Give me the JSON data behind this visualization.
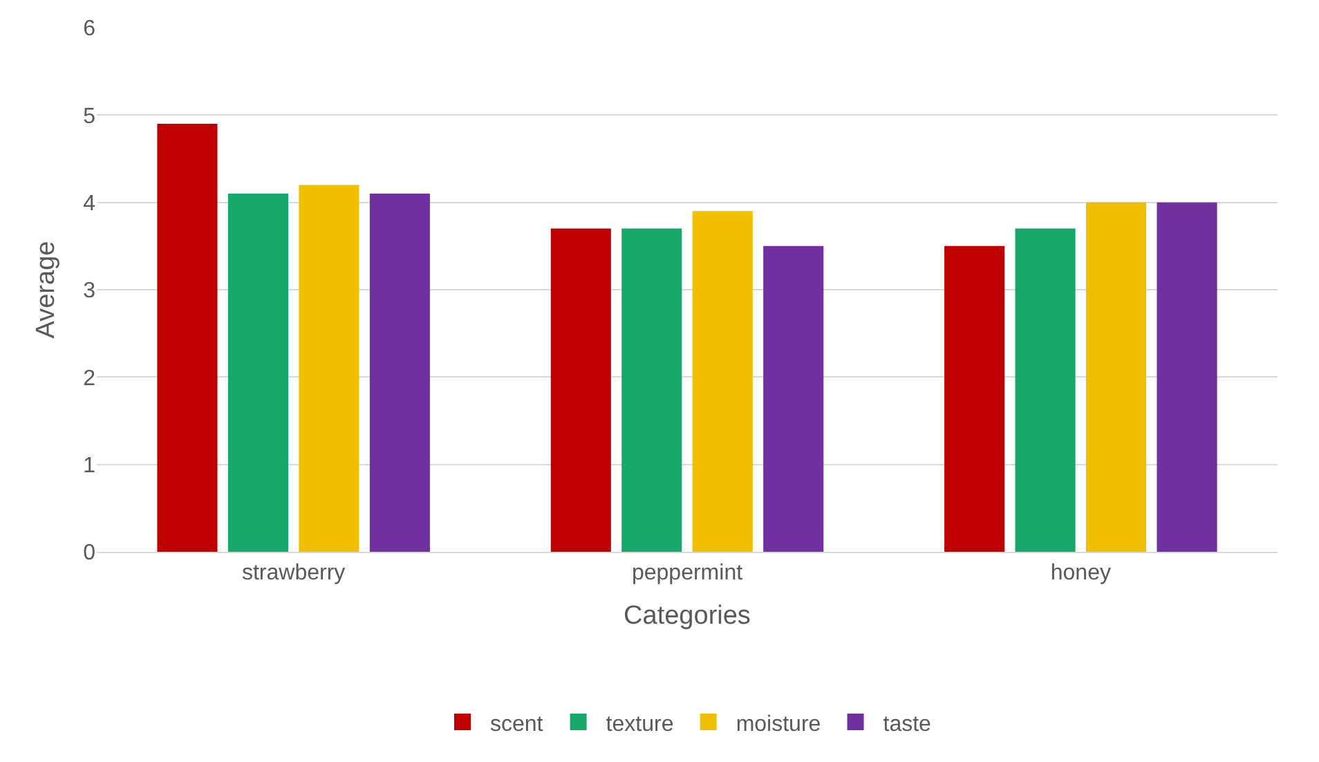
{
  "chart_data": {
    "type": "bar",
    "xlabel": "Categories",
    "ylabel": "Average",
    "categories": [
      "strawberry",
      "peppermint",
      "honey"
    ],
    "series": [
      {
        "name": "scent",
        "color": "#c00000",
        "values": [
          4.9,
          3.7,
          3.5
        ]
      },
      {
        "name": "texture",
        "color": "#15a86a",
        "values": [
          4.1,
          3.7,
          3.7
        ]
      },
      {
        "name": "moisture",
        "color": "#f0c000",
        "values": [
          4.2,
          3.9,
          4.0
        ]
      },
      {
        "name": "taste",
        "color": "#7030a0",
        "values": [
          4.1,
          3.5,
          4.0
        ]
      }
    ],
    "ylim": [
      0,
      6
    ],
    "yticks": [
      0,
      1,
      2,
      3,
      4,
      5,
      6
    ],
    "grid": "y",
    "legend": "bottom"
  }
}
